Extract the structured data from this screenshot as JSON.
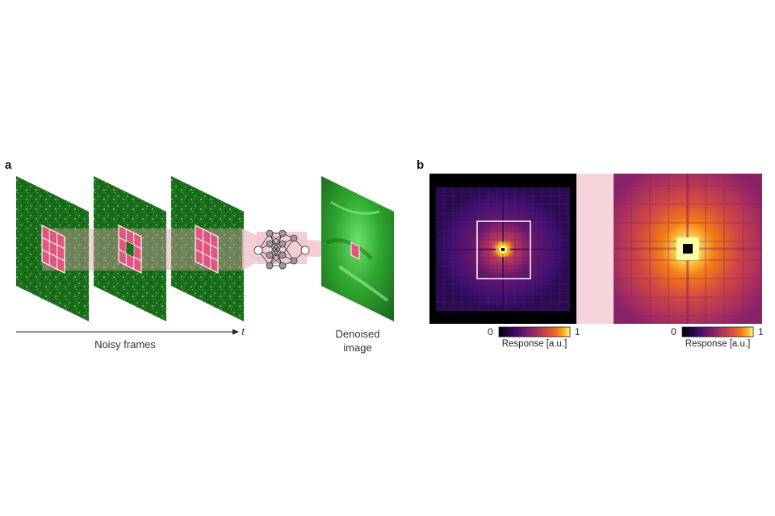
{
  "panel_a": {
    "letter": "a",
    "noisy_frames_label": "Noisy frames",
    "time_axis_label": "t",
    "denoised_label_line1": "Denoised",
    "denoised_label_line2": "image"
  },
  "panel_b": {
    "letter": "b",
    "left_colorbar": {
      "min_label": "0",
      "max_label": "1",
      "title": "Response [a.u.]"
    },
    "right_colorbar": {
      "min_label": "0",
      "max_label": "1",
      "title": "Response [a.u.]"
    }
  },
  "colors": {
    "frame_green": "#1f7a1f",
    "patch_pink": "#e0567f",
    "beam_pink": "#f2c6cf",
    "inferno_dark": "#0b0620",
    "inferno_bright": "#fcffa4"
  }
}
